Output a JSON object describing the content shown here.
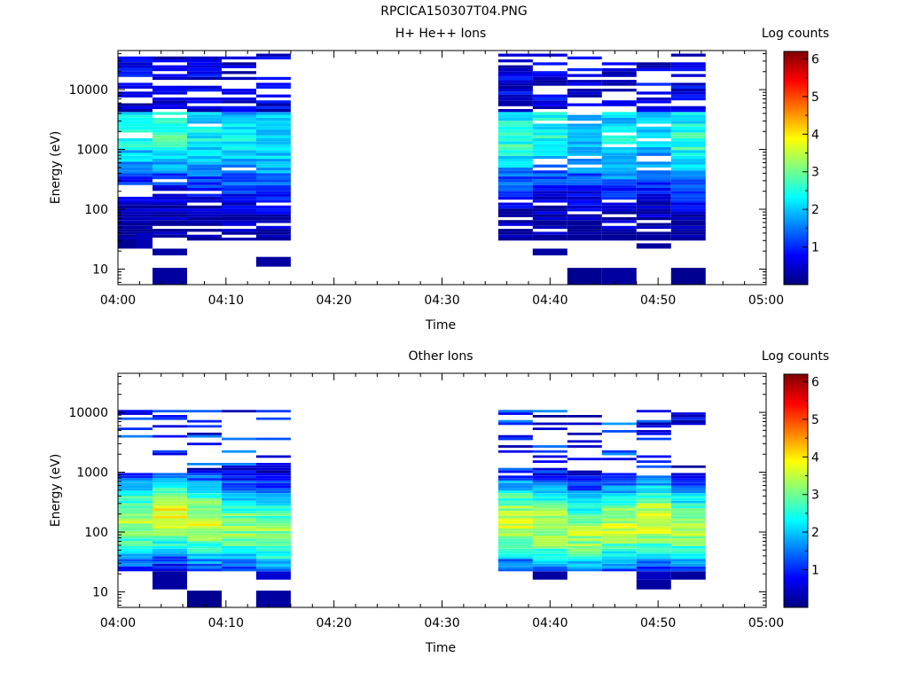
{
  "figure": {
    "title": "RPCICA150307T04.PNG"
  },
  "chart_data": [
    {
      "type": "heatmap",
      "title": "H+ He++ Ions",
      "xlabel": "Time",
      "ylabel": "Energy (eV)",
      "x_tick_labels": [
        "04:00",
        "04:10",
        "04:20",
        "04:30",
        "04:40",
        "04:50",
        "05:00"
      ],
      "xlim_minutes": [
        0,
        60
      ],
      "y_scale": "log",
      "ylim": [
        5.5,
        45000
      ],
      "y_tick_values": [
        10,
        100,
        1000,
        10000
      ],
      "y_tick_labels": [
        "10",
        "100",
        "1000",
        "10000"
      ],
      "colorbar": {
        "label": "Log counts",
        "range": [
          0,
          6.2
        ],
        "tick_labels": [
          "1",
          "2",
          "3",
          "4",
          "5",
          "6"
        ],
        "colormap": "jet"
      },
      "scan_minutes": [
        [
          0.0,
          3.2
        ],
        [
          3.2,
          6.4
        ],
        [
          6.4,
          9.6
        ],
        [
          9.6,
          12.8
        ],
        [
          12.8,
          16.0
        ],
        [
          35.2,
          38.4
        ],
        [
          38.4,
          41.6
        ],
        [
          41.6,
          44.8
        ],
        [
          44.8,
          48.0
        ],
        [
          48.0,
          51.2
        ],
        [
          51.2,
          54.4
        ]
      ],
      "sweep_energy_range_ev": [
        30,
        40000
      ],
      "columns_mean_log_counts": [
        1.4,
        1.5,
        1.5,
        1.4,
        1.2,
        1.6,
        1.4,
        1.2,
        1.3,
        1.3,
        1.6
      ],
      "columns_peak_energy_ev": [
        2000,
        2500,
        1800,
        1500,
        1500,
        1800,
        2000,
        1500,
        1500,
        2000,
        1500
      ],
      "columns_peak_log_counts": [
        2.4,
        2.8,
        2.3,
        2.2,
        2.3,
        2.6,
        2.4,
        2.1,
        2.4,
        2.2,
        2.6
      ],
      "lowest_energy_patches": [
        {
          "minutes": [
            0.0,
            1.6
          ],
          "energy_ev": [
            22,
            32
          ],
          "log_counts": 0.1
        },
        {
          "minutes": [
            1.6,
            3.2
          ],
          "energy_ev": [
            22,
            32
          ],
          "log_counts": 0.3
        },
        {
          "minutes": [
            1.6,
            3.2
          ],
          "energy_ev": [
            32,
            40
          ],
          "log_counts": 0.4
        },
        {
          "minutes": [
            3.2,
            6.4
          ],
          "energy_ev": [
            17,
            22
          ],
          "log_counts": 0.2
        },
        {
          "minutes": [
            3.2,
            6.4
          ],
          "energy_ev": [
            5.6,
            10.5
          ],
          "log_counts": 0.2
        },
        {
          "minutes": [
            12.8,
            16.0
          ],
          "energy_ev": [
            11,
            16
          ],
          "log_counts": 0.2
        },
        {
          "minutes": [
            38.4,
            41.6
          ],
          "energy_ev": [
            17,
            22
          ],
          "log_counts": 0.2
        },
        {
          "minutes": [
            41.6,
            44.8
          ],
          "energy_ev": [
            5.6,
            10.5
          ],
          "log_counts": 0.1
        },
        {
          "minutes": [
            44.8,
            48.0
          ],
          "energy_ev": [
            5.6,
            10.5
          ],
          "log_counts": 0.2
        },
        {
          "minutes": [
            48.0,
            51.2
          ],
          "energy_ev": [
            22,
            27
          ],
          "log_counts": 0.2
        },
        {
          "minutes": [
            51.2,
            54.4
          ],
          "energy_ev": [
            5.6,
            10.5
          ],
          "log_counts": 0.1
        }
      ]
    },
    {
      "type": "heatmap",
      "title": "Other Ions",
      "xlabel": "Time",
      "ylabel": "Energy (eV)",
      "x_tick_labels": [
        "04:00",
        "04:10",
        "04:20",
        "04:30",
        "04:40",
        "04:50",
        "05:00"
      ],
      "xlim_minutes": [
        0,
        60
      ],
      "y_scale": "log",
      "ylim": [
        5.5,
        45000
      ],
      "y_tick_values": [
        10,
        100,
        1000,
        10000
      ],
      "y_tick_labels": [
        "10",
        "100",
        "1000",
        "10000"
      ],
      "colorbar": {
        "label": "Log counts",
        "range": [
          0,
          6.2
        ],
        "tick_labels": [
          "1",
          "2",
          "3",
          "4",
          "5",
          "6"
        ],
        "colormap": "jet"
      },
      "scan_minutes": [
        [
          0.0,
          3.2
        ],
        [
          3.2,
          6.4
        ],
        [
          6.4,
          9.6
        ],
        [
          9.6,
          12.8
        ],
        [
          12.8,
          16.0
        ],
        [
          35.2,
          38.4
        ],
        [
          38.4,
          41.6
        ],
        [
          41.6,
          44.8
        ],
        [
          44.8,
          48.0
        ],
        [
          48.0,
          51.2
        ],
        [
          51.2,
          54.4
        ]
      ],
      "main_band_energy_ev": [
        22,
        1000
      ],
      "columns_main_band_top_ev": [
        1000,
        1000,
        1100,
        1350,
        1400,
        900,
        1000,
        1100,
        1000,
        900,
        1000
      ],
      "columns_peak_energy_ev": [
        150,
        200,
        150,
        120,
        100,
        150,
        120,
        100,
        120,
        150,
        120
      ],
      "columns_peak_log_counts": [
        3.4,
        3.8,
        3.6,
        3.2,
        3.2,
        3.6,
        3.5,
        3.3,
        3.5,
        3.7,
        3.3
      ],
      "sparse_band_energy_ev": [
        1000,
        11000
      ],
      "lowest_energy_patches": [
        {
          "minutes": [
            3.2,
            6.4
          ],
          "energy_ev": [
            11,
            22
          ],
          "log_counts": 0.2
        },
        {
          "minutes": [
            6.4,
            9.6
          ],
          "energy_ev": [
            5.6,
            10.5
          ],
          "log_counts": 0.1
        },
        {
          "minutes": [
            12.8,
            16.0
          ],
          "energy_ev": [
            5.6,
            10.5
          ],
          "log_counts": 0.2
        },
        {
          "minutes": [
            12.8,
            16.0
          ],
          "energy_ev": [
            16,
            22
          ],
          "log_counts": 0.5
        },
        {
          "minutes": [
            38.4,
            41.6
          ],
          "energy_ev": [
            16,
            22
          ],
          "log_counts": 0.2
        },
        {
          "minutes": [
            48.0,
            51.2
          ],
          "energy_ev": [
            11,
            16
          ],
          "log_counts": 0.2
        },
        {
          "minutes": [
            48.0,
            51.2
          ],
          "energy_ev": [
            16,
            22
          ],
          "log_counts": 0.4
        },
        {
          "minutes": [
            51.2,
            54.4
          ],
          "energy_ev": [
            16,
            22
          ],
          "log_counts": 0.2
        }
      ]
    }
  ]
}
